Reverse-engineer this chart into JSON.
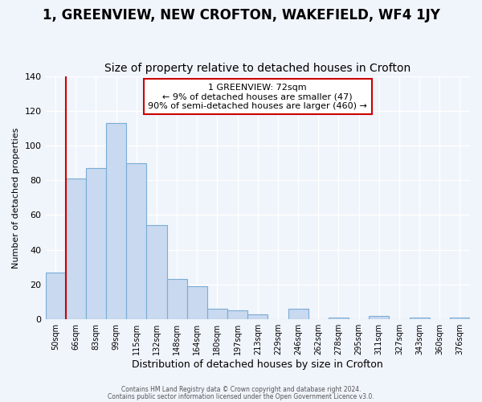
{
  "title1": "1, GREENVIEW, NEW CROFTON, WAKEFIELD, WF4 1JY",
  "title2": "Size of property relative to detached houses in Crofton",
  "xlabel": "Distribution of detached houses by size in Crofton",
  "ylabel": "Number of detached properties",
  "bar_heights": [
    27,
    81,
    87,
    113,
    90,
    54,
    23,
    19,
    6,
    5,
    3,
    0,
    6,
    0,
    1,
    0,
    2,
    0,
    1,
    0,
    1
  ],
  "bar_labels": [
    "50sqm",
    "66sqm",
    "83sqm",
    "99sqm",
    "115sqm",
    "132sqm",
    "148sqm",
    "164sqm",
    "180sqm",
    "197sqm",
    "213sqm",
    "229sqm",
    "246sqm",
    "262sqm",
    "278sqm",
    "295sqm",
    "311sqm",
    "327sqm",
    "343sqm",
    "360sqm",
    "376sqm"
  ],
  "bar_color": "#c8d9f0",
  "bar_edge_color": "#7aadd4",
  "vline_color": "#cc0000",
  "annotation_text": "1 GREENVIEW: 72sqm\n← 9% of detached houses are smaller (47)\n90% of semi-detached houses are larger (460) →",
  "annotation_box_facecolor": "#ffffff",
  "annotation_border_color": "#cc0000",
  "ylim": [
    0,
    140
  ],
  "yticks": [
    0,
    20,
    40,
    60,
    80,
    100,
    120,
    140
  ],
  "footer1": "Contains HM Land Registry data © Crown copyright and database right 2024.",
  "footer2": "Contains public sector information licensed under the Open Government Licence v3.0.",
  "bg_color": "#f0f4fb",
  "plot_bg_color": "#f0f4fb",
  "grid_color": "#ffffff",
  "title1_fontsize": 12,
  "title2_fontsize": 10,
  "vline_x_bar_index": 1
}
